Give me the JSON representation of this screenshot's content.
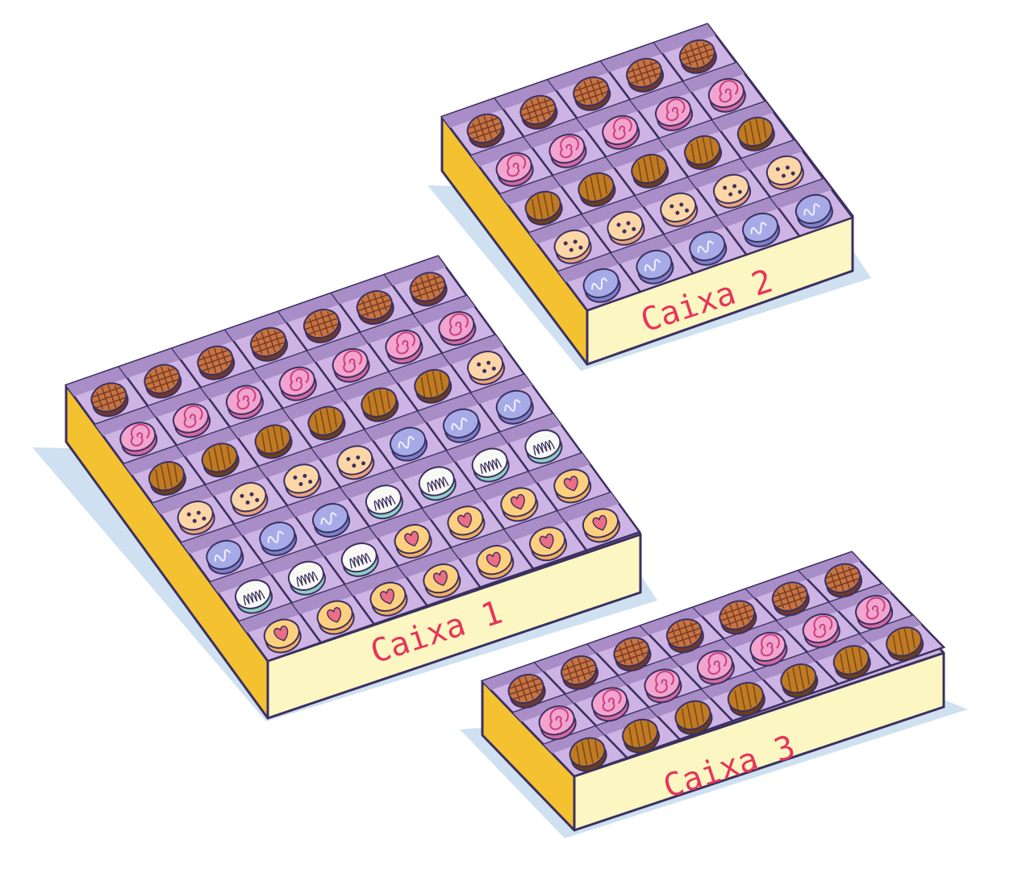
{
  "colors": {
    "tray_top": "#c9b3e0",
    "cell_fill": "#cdb4e4",
    "cell_dark": "#a98dc7",
    "side_dark": "#f4c230",
    "side_front": "#fbf6c2",
    "outline": "#3b3060",
    "shadow": "#cfe1f0",
    "label": "#e8345a"
  },
  "boxes": [
    {
      "label": "Caixa 1",
      "rows": 7,
      "cols": 7,
      "grid": [
        [
          "waffle",
          "waffle",
          "waffle",
          "waffle",
          "waffle",
          "waffle",
          "waffle"
        ],
        [
          "swirl",
          "swirl",
          "swirl",
          "swirl",
          "swirl",
          "swirl",
          "swirl"
        ],
        [
          "choc",
          "choc",
          "choc",
          "choc",
          "choc",
          "choc",
          "dots"
        ],
        [
          "dots",
          "dots",
          "dots",
          "dots",
          "blue",
          "blue",
          "blue"
        ],
        [
          "blue",
          "blue",
          "blue",
          "white",
          "white",
          "white",
          "white"
        ],
        [
          "white",
          "white",
          "white",
          "heart",
          "heart",
          "heart",
          "heart"
        ],
        [
          "heart",
          "heart",
          "heart",
          "heart",
          "heart",
          "heart",
          "heart"
        ]
      ]
    },
    {
      "label": "Caixa 2",
      "rows": 5,
      "cols": 5,
      "grid": [
        [
          "waffle",
          "waffle",
          "waffle",
          "waffle",
          "waffle"
        ],
        [
          "swirl",
          "swirl",
          "swirl",
          "swirl",
          "swirl"
        ],
        [
          "choc",
          "choc",
          "choc",
          "choc",
          "choc"
        ],
        [
          "dots",
          "dots",
          "dots",
          "dots",
          "dots"
        ],
        [
          "blue",
          "blue",
          "blue",
          "blue",
          "blue"
        ]
      ]
    },
    {
      "label": "Caixa 3",
      "rows": 3,
      "cols": 7,
      "grid": [
        [
          "waffle",
          "waffle",
          "waffle",
          "waffle",
          "waffle",
          "waffle",
          "waffle"
        ],
        [
          "swirl",
          "swirl",
          "swirl",
          "swirl",
          "swirl",
          "swirl",
          "swirl"
        ],
        [
          "choc",
          "choc",
          "choc",
          "choc",
          "choc",
          "choc",
          "choc"
        ]
      ]
    }
  ]
}
